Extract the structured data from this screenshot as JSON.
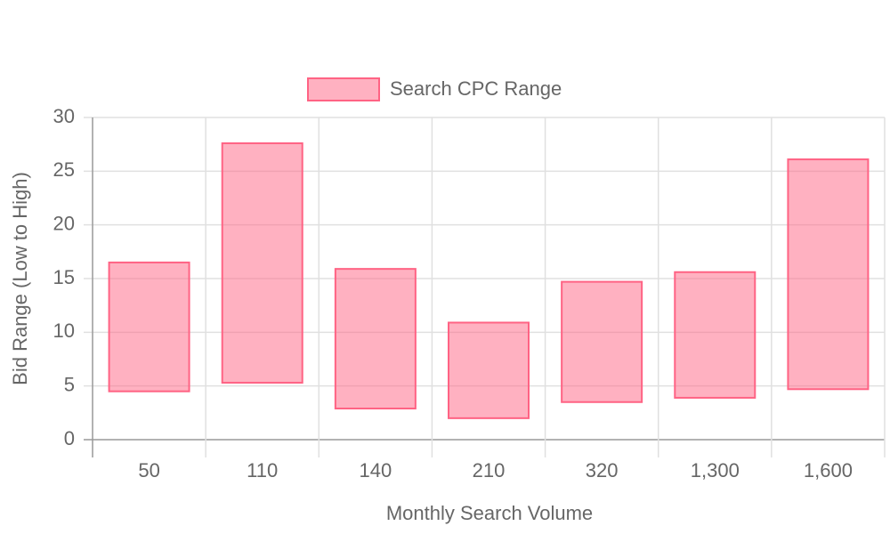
{
  "chart_data": {
    "type": "floating-bar",
    "x_label": "Monthly Search Volume",
    "y_label": "Bid Range (Low to High)",
    "categories": [
      "50",
      "110",
      "140",
      "210",
      "320",
      "1,300",
      "1,600"
    ],
    "series": [
      {
        "name": "Search CPC Range",
        "color": "#ff6384",
        "values": [
          [
            4.5,
            16.5
          ],
          [
            5.3,
            27.6
          ],
          [
            2.9,
            15.9
          ],
          [
            2.0,
            10.9
          ],
          [
            3.5,
            14.7
          ],
          [
            3.9,
            15.6
          ],
          [
            4.7,
            26.1
          ]
        ]
      }
    ],
    "ylim": [
      0,
      30
    ],
    "yticks": [
      0,
      5,
      10,
      15,
      20,
      25,
      30
    ],
    "grid": true,
    "legend": "top"
  }
}
